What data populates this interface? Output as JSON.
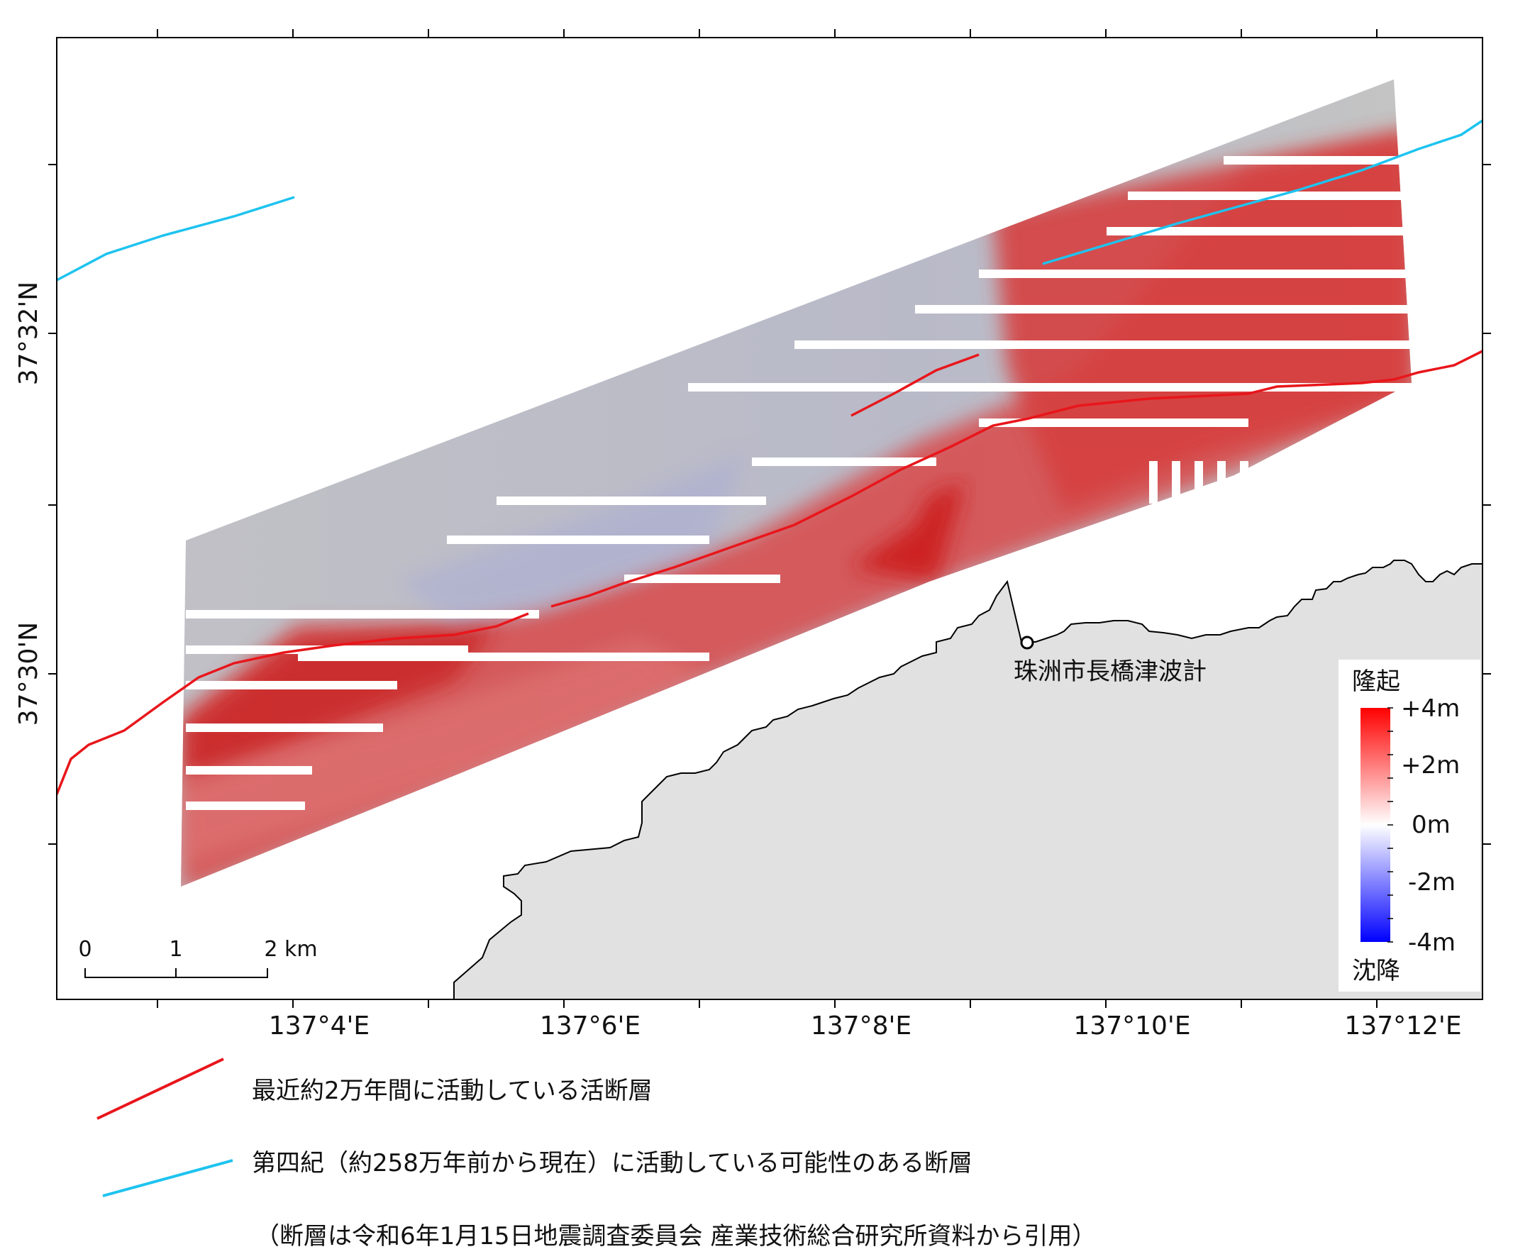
{
  "axes": {
    "lon_labels": [
      "137°4'E",
      "137°6'E",
      "137°8'E",
      "137°10'E",
      "137°12'E"
    ],
    "lat_labels": [
      "37°32'N",
      "37°30'N"
    ]
  },
  "scale_bar": {
    "ticks": [
      "0",
      "1",
      "2 km"
    ]
  },
  "place": {
    "label": "珠洲市長橋津波計"
  },
  "colorbar": {
    "top_label": "隆起",
    "bottom_label": "沈降",
    "ticks": [
      "+4m",
      "+2m",
      "0m",
      "-2m",
      "-4m"
    ],
    "colors": {
      "uplift": "#ff0000",
      "zero": "#ffffff",
      "subsidence": "#0000ff"
    }
  },
  "legend": {
    "active_fault": {
      "label": "最近約2万年間に活動している活断層",
      "color": "#e8161b"
    },
    "quaternary_fault": {
      "label": "第四紀（約258万年前から現在）に活動している可能性のある断層",
      "color": "#1ec3ef"
    },
    "note": "（断層は令和6年1月15日地震調査委員会 産業技術総合研究所資料から引用）"
  },
  "land_color": "#e1e1e1"
}
